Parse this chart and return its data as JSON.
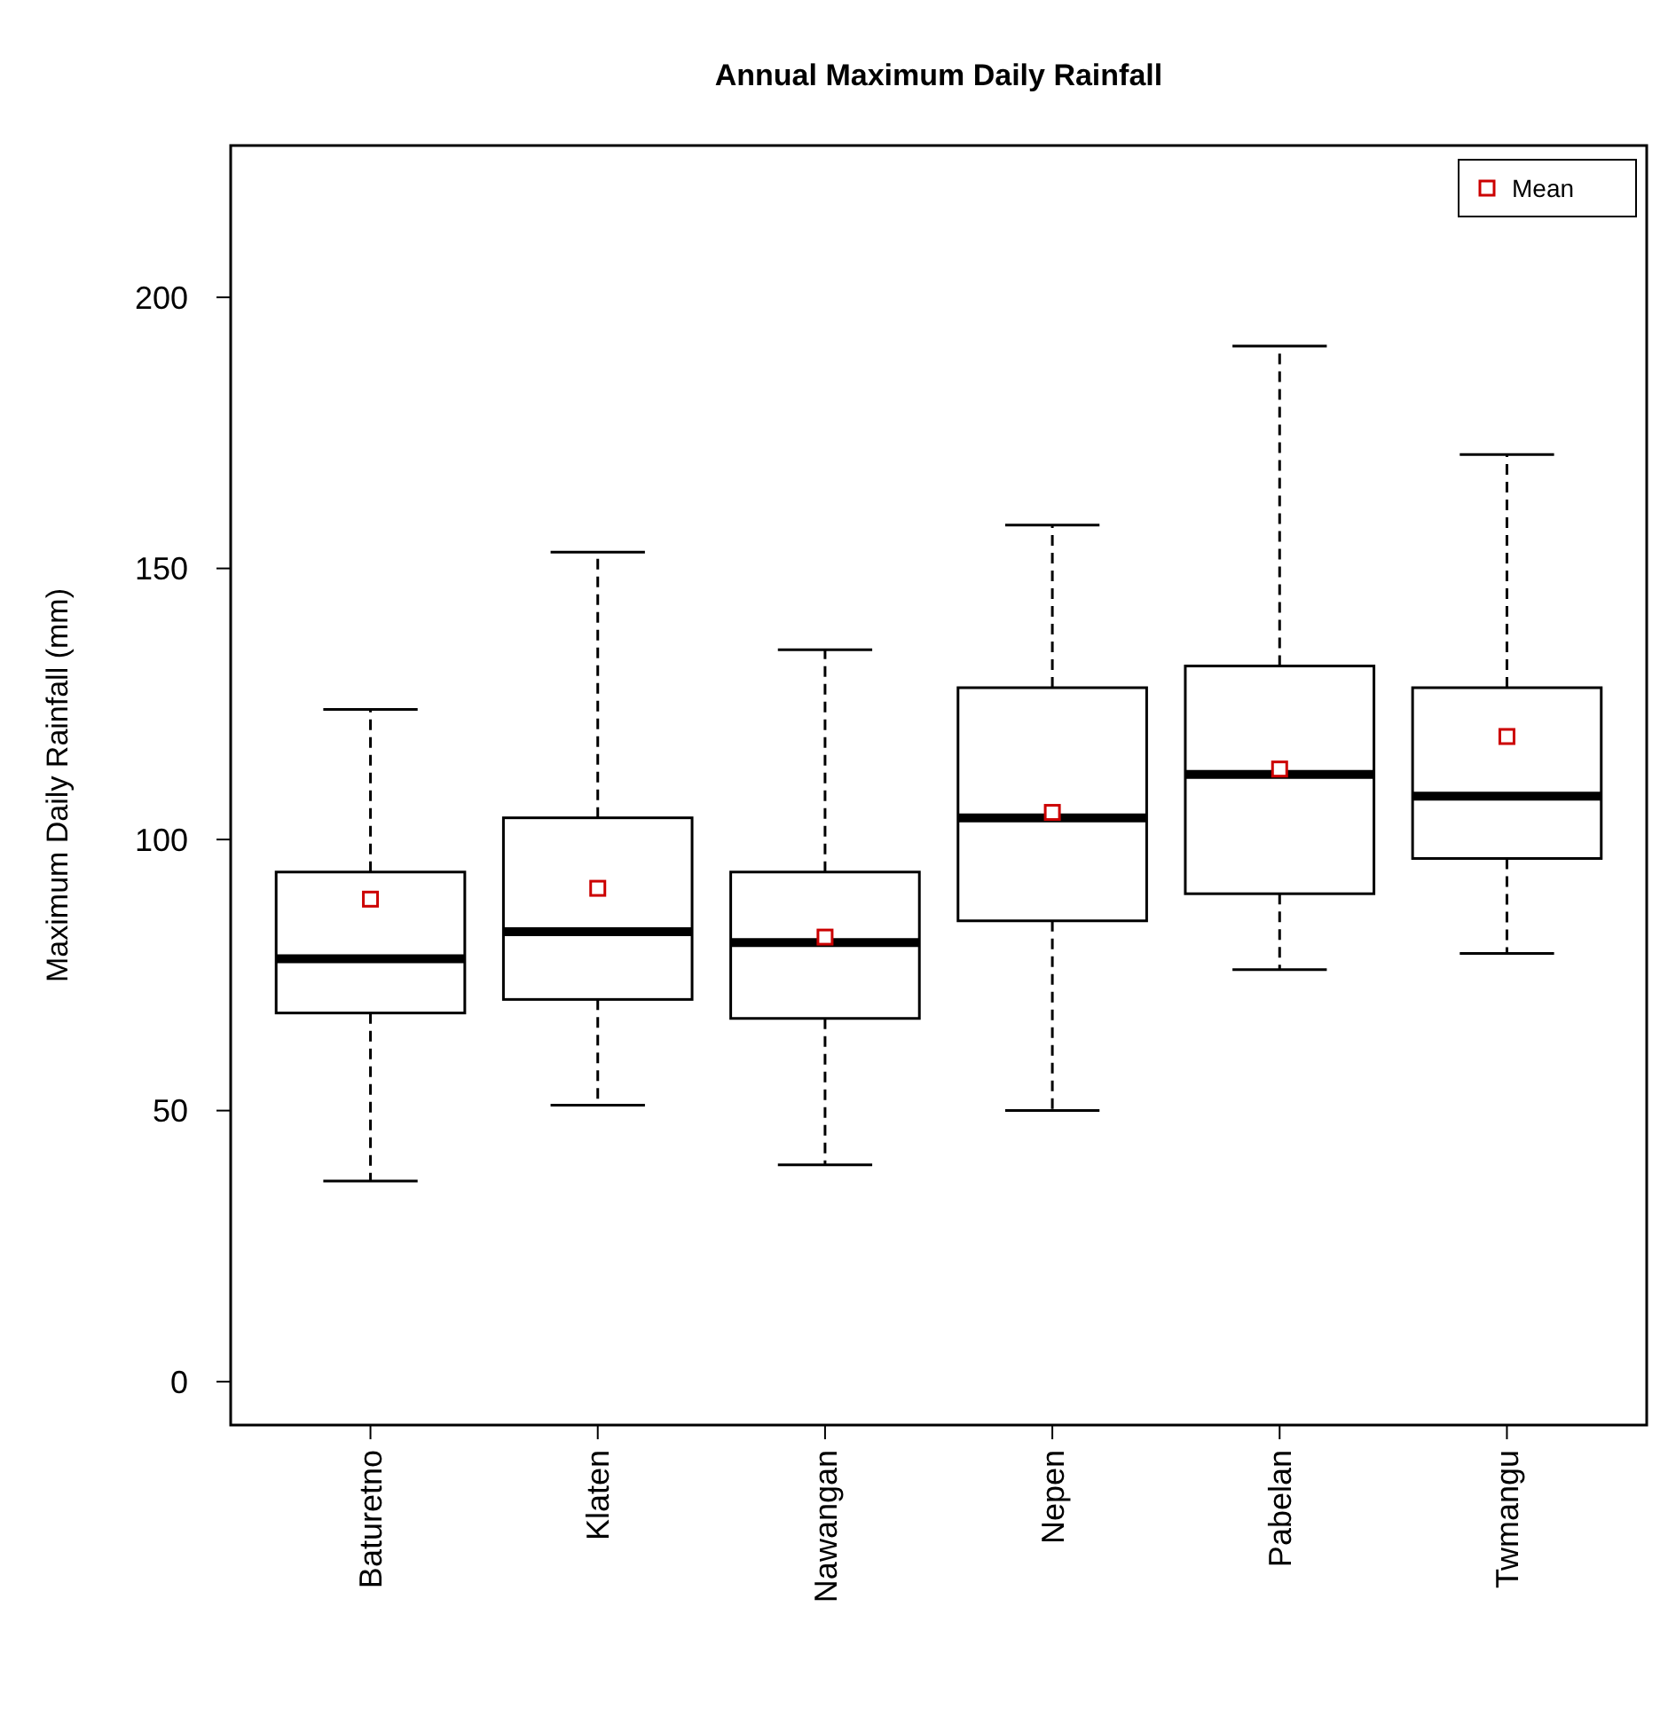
{
  "chart_data": {
    "type": "box",
    "title": "Annual Maximum Daily Rainfall",
    "ylabel": "Maximum Daily Rainfall (mm)",
    "categories": [
      "Baturetno",
      "Klaten",
      "Nawangan",
      "Nepen",
      "Pabelan",
      "Twmangu"
    ],
    "ylim": [
      -8,
      228
    ],
    "yticks": [
      0,
      50,
      100,
      150,
      200
    ],
    "legend": "top right",
    "series": [
      {
        "color": "#000000",
        "line_style": "dashed",
        "boxes": [
          {
            "low": 37,
            "q1": 68,
            "median": 78,
            "q3": 94,
            "high": 124
          },
          {
            "low": 51,
            "q1": 70.5,
            "median": 83,
            "q3": 104,
            "high": 153
          },
          {
            "low": 40,
            "q1": 67,
            "median": 81,
            "q3": 94,
            "high": 135
          },
          {
            "low": 50,
            "q1": 85,
            "median": 104,
            "q3": 128,
            "high": 158
          },
          {
            "low": 76,
            "q1": 90,
            "median": 112,
            "q3": 132,
            "high": 191
          },
          {
            "low": 79,
            "q1": 96.5,
            "median": 108,
            "q3": 128,
            "high": 171
          }
        ]
      },
      {
        "type": "scatter",
        "name": "Mean",
        "color": "#cc0000",
        "marker": "square",
        "x": [
          "Baturetno",
          "Klaten",
          "Nawangan",
          "Nepen",
          "Pabelan",
          "Twmangu"
        ],
        "values": [
          89,
          91,
          82,
          105,
          113,
          119
        ]
      }
    ]
  }
}
